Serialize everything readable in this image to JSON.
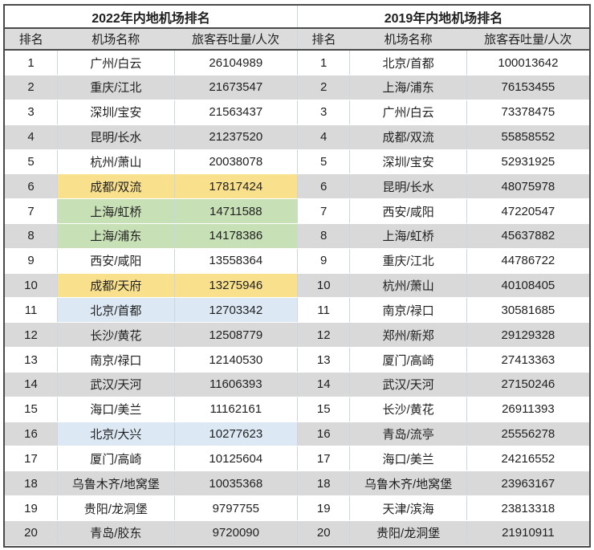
{
  "chart_data": [
    {
      "type": "table",
      "title": "2022年内地机场排名",
      "columns": [
        "排名",
        "机场名称",
        "旅客吞吐量/人次"
      ],
      "rows": [
        {
          "rank": "1",
          "airport": "广州/白云",
          "throughput": "26104989",
          "highlight": ""
        },
        {
          "rank": "2",
          "airport": "重庆/江北",
          "throughput": "21673547",
          "highlight": ""
        },
        {
          "rank": "3",
          "airport": "深圳/宝安",
          "throughput": "21563437",
          "highlight": ""
        },
        {
          "rank": "4",
          "airport": "昆明/长水",
          "throughput": "21237520",
          "highlight": ""
        },
        {
          "rank": "5",
          "airport": "杭州/萧山",
          "throughput": "20038078",
          "highlight": ""
        },
        {
          "rank": "6",
          "airport": "成都/双流",
          "throughput": "17817424",
          "highlight": "yellow"
        },
        {
          "rank": "7",
          "airport": "上海/虹桥",
          "throughput": "14711588",
          "highlight": "green"
        },
        {
          "rank": "8",
          "airport": "上海/浦东",
          "throughput": "14178386",
          "highlight": "green"
        },
        {
          "rank": "9",
          "airport": "西安/咸阳",
          "throughput": "13558364",
          "highlight": ""
        },
        {
          "rank": "10",
          "airport": "成都/天府",
          "throughput": "13275946",
          "highlight": "yellow"
        },
        {
          "rank": "11",
          "airport": "北京/首都",
          "throughput": "12703342",
          "highlight": "blue"
        },
        {
          "rank": "12",
          "airport": "长沙/黄花",
          "throughput": "12508779",
          "highlight": ""
        },
        {
          "rank": "13",
          "airport": "南京/禄口",
          "throughput": "12140530",
          "highlight": ""
        },
        {
          "rank": "14",
          "airport": "武汉/天河",
          "throughput": "11606393",
          "highlight": ""
        },
        {
          "rank": "15",
          "airport": "海口/美兰",
          "throughput": "11162161",
          "highlight": ""
        },
        {
          "rank": "16",
          "airport": "北京/大兴",
          "throughput": "10277623",
          "highlight": "blue"
        },
        {
          "rank": "17",
          "airport": "厦门/高崎",
          "throughput": "10125604",
          "highlight": ""
        },
        {
          "rank": "18",
          "airport": "乌鲁木齐/地窝堡",
          "throughput": "10035368",
          "highlight": ""
        },
        {
          "rank": "19",
          "airport": "贵阳/龙洞堡",
          "throughput": "9797755",
          "highlight": ""
        },
        {
          "rank": "20",
          "airport": "青岛/胶东",
          "throughput": "9720090",
          "highlight": ""
        }
      ]
    },
    {
      "type": "table",
      "title": "2019年内地机场排名",
      "columns": [
        "排名",
        "机场名称",
        "旅客吞吐量/人次"
      ],
      "rows": [
        {
          "rank": "1",
          "airport": "北京/首都",
          "throughput": "100013642",
          "highlight": ""
        },
        {
          "rank": "2",
          "airport": "上海/浦东",
          "throughput": "76153455",
          "highlight": ""
        },
        {
          "rank": "3",
          "airport": "广州/白云",
          "throughput": "73378475",
          "highlight": ""
        },
        {
          "rank": "4",
          "airport": "成都/双流",
          "throughput": "55858552",
          "highlight": ""
        },
        {
          "rank": "5",
          "airport": "深圳/宝安",
          "throughput": "52931925",
          "highlight": ""
        },
        {
          "rank": "6",
          "airport": "昆明/长水",
          "throughput": "48075978",
          "highlight": ""
        },
        {
          "rank": "7",
          "airport": "西安/咸阳",
          "throughput": "47220547",
          "highlight": ""
        },
        {
          "rank": "8",
          "airport": "上海/虹桥",
          "throughput": "45637882",
          "highlight": ""
        },
        {
          "rank": "9",
          "airport": "重庆/江北",
          "throughput": "44786722",
          "highlight": ""
        },
        {
          "rank": "10",
          "airport": "杭州/萧山",
          "throughput": "40108405",
          "highlight": ""
        },
        {
          "rank": "11",
          "airport": "南京/禄口",
          "throughput": "30581685",
          "highlight": ""
        },
        {
          "rank": "12",
          "airport": "郑州/新郑",
          "throughput": "29129328",
          "highlight": ""
        },
        {
          "rank": "13",
          "airport": "厦门/高崎",
          "throughput": "27413363",
          "highlight": ""
        },
        {
          "rank": "14",
          "airport": "武汉/天河",
          "throughput": "27150246",
          "highlight": ""
        },
        {
          "rank": "15",
          "airport": "长沙/黄花",
          "throughput": "26911393",
          "highlight": ""
        },
        {
          "rank": "16",
          "airport": "青岛/流亭",
          "throughput": "25556278",
          "highlight": ""
        },
        {
          "rank": "17",
          "airport": "海口/美兰",
          "throughput": "24216552",
          "highlight": ""
        },
        {
          "rank": "18",
          "airport": "乌鲁木齐/地窝堡",
          "throughput": "23963167",
          "highlight": ""
        },
        {
          "rank": "19",
          "airport": "天津/滨海",
          "throughput": "23813318",
          "highlight": ""
        },
        {
          "rank": "20",
          "airport": "贵阳/龙洞堡",
          "throughput": "21910911",
          "highlight": ""
        }
      ]
    }
  ],
  "colors": {
    "stripe_grey": "#d9d9d9",
    "header_grey": "#dcdcdc",
    "highlight_yellow": "#f9e08c",
    "highlight_green": "#c8e0b6",
    "highlight_blue": "#dce9f5",
    "border_dark": "#4a4a4a",
    "border_light": "#ccd6e0"
  }
}
